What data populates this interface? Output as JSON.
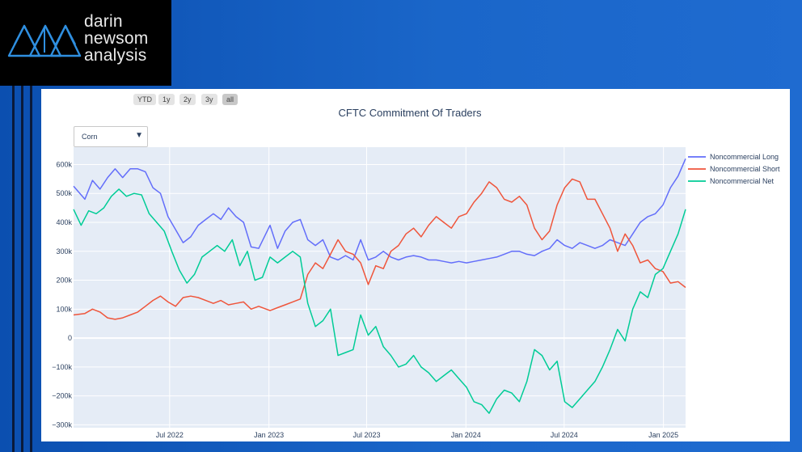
{
  "logo": {
    "word1": "darin",
    "word2": "newsom",
    "word3": "analysis",
    "colors": {
      "mountain": "#2f8fe0",
      "text": "#e9e9e9",
      "background": "#000000"
    }
  },
  "range_selector": {
    "buttons": [
      "YTD",
      "1y",
      "2y",
      "3y",
      "all"
    ],
    "active": "all"
  },
  "dropdown": {
    "selected": "Corn",
    "icon": "triangle-down-icon"
  },
  "chart_data": {
    "type": "line",
    "title": "CFTC Commitment Of Traders",
    "xlabel": "",
    "ylabel": "",
    "grid": true,
    "legend_position": "right",
    "xlim": [
      "2022-01-04",
      "2025-02-11"
    ],
    "ylim": [
      -310000,
      660000
    ],
    "xticks": [
      {
        "date": "2022-07-01",
        "label": "Jul 2022"
      },
      {
        "date": "2023-01-01",
        "label": "Jan 2023"
      },
      {
        "date": "2023-07-01",
        "label": "Jul 2023"
      },
      {
        "date": "2024-01-01",
        "label": "Jan 2024"
      },
      {
        "date": "2024-07-01",
        "label": "Jul 2024"
      },
      {
        "date": "2025-01-01",
        "label": "Jan 2025"
      }
    ],
    "yticks": [
      {
        "value": 600000,
        "label": "600k"
      },
      {
        "value": 500000,
        "label": "500k"
      },
      {
        "value": 400000,
        "label": "400k"
      },
      {
        "value": 300000,
        "label": "300k"
      },
      {
        "value": 200000,
        "label": "200k"
      },
      {
        "value": 100000,
        "label": "100k"
      },
      {
        "value": 0,
        "label": "0"
      },
      {
        "value": -100000,
        "label": "−100k"
      },
      {
        "value": -200000,
        "label": "−200k"
      },
      {
        "value": -300000,
        "label": "−300k"
      }
    ],
    "series": [
      {
        "name": "Noncommercial Long",
        "color": "#636efa",
        "points": [
          [
            "2022-01-04",
            525000
          ],
          [
            "2022-01-25",
            480000
          ],
          [
            "2022-02-08",
            545000
          ],
          [
            "2022-02-22",
            515000
          ],
          [
            "2022-03-08",
            555000
          ],
          [
            "2022-03-22",
            585000
          ],
          [
            "2022-04-05",
            555000
          ],
          [
            "2022-04-19",
            585000
          ],
          [
            "2022-05-03",
            585000
          ],
          [
            "2022-05-17",
            575000
          ],
          [
            "2022-05-31",
            520000
          ],
          [
            "2022-06-14",
            500000
          ],
          [
            "2022-06-28",
            420000
          ],
          [
            "2022-07-12",
            375000
          ],
          [
            "2022-07-26",
            330000
          ],
          [
            "2022-08-09",
            350000
          ],
          [
            "2022-08-23",
            390000
          ],
          [
            "2022-09-06",
            410000
          ],
          [
            "2022-09-20",
            430000
          ],
          [
            "2022-10-04",
            410000
          ],
          [
            "2022-10-18",
            450000
          ],
          [
            "2022-11-01",
            420000
          ],
          [
            "2022-11-15",
            400000
          ],
          [
            "2022-11-29",
            315000
          ],
          [
            "2022-12-13",
            310000
          ],
          [
            "2023-01-03",
            390000
          ],
          [
            "2023-01-17",
            310000
          ],
          [
            "2023-01-31",
            370000
          ],
          [
            "2023-02-14",
            400000
          ],
          [
            "2023-02-28",
            410000
          ],
          [
            "2023-03-14",
            340000
          ],
          [
            "2023-03-28",
            320000
          ],
          [
            "2023-04-11",
            340000
          ],
          [
            "2023-04-25",
            280000
          ],
          [
            "2023-05-09",
            270000
          ],
          [
            "2023-05-23",
            285000
          ],
          [
            "2023-06-06",
            270000
          ],
          [
            "2023-06-20",
            340000
          ],
          [
            "2023-07-04",
            270000
          ],
          [
            "2023-07-18",
            280000
          ],
          [
            "2023-08-01",
            300000
          ],
          [
            "2023-08-15",
            280000
          ],
          [
            "2023-08-29",
            270000
          ],
          [
            "2023-09-12",
            280000
          ],
          [
            "2023-09-26",
            285000
          ],
          [
            "2023-10-10",
            280000
          ],
          [
            "2023-10-24",
            270000
          ],
          [
            "2023-11-07",
            270000
          ],
          [
            "2023-11-21",
            265000
          ],
          [
            "2023-12-05",
            260000
          ],
          [
            "2023-12-19",
            265000
          ],
          [
            "2024-01-02",
            260000
          ],
          [
            "2024-01-16",
            265000
          ],
          [
            "2024-01-30",
            270000
          ],
          [
            "2024-02-13",
            275000
          ],
          [
            "2024-02-27",
            280000
          ],
          [
            "2024-03-12",
            290000
          ],
          [
            "2024-03-26",
            300000
          ],
          [
            "2024-04-09",
            300000
          ],
          [
            "2024-04-23",
            290000
          ],
          [
            "2024-05-07",
            285000
          ],
          [
            "2024-05-21",
            300000
          ],
          [
            "2024-06-04",
            310000
          ],
          [
            "2024-06-18",
            340000
          ],
          [
            "2024-07-02",
            320000
          ],
          [
            "2024-07-16",
            310000
          ],
          [
            "2024-07-30",
            330000
          ],
          [
            "2024-08-13",
            320000
          ],
          [
            "2024-08-27",
            310000
          ],
          [
            "2024-09-10",
            320000
          ],
          [
            "2024-09-24",
            340000
          ],
          [
            "2024-10-08",
            330000
          ],
          [
            "2024-10-22",
            320000
          ],
          [
            "2024-11-05",
            360000
          ],
          [
            "2024-11-19",
            400000
          ],
          [
            "2024-12-03",
            420000
          ],
          [
            "2024-12-17",
            430000
          ],
          [
            "2024-12-31",
            460000
          ],
          [
            "2025-01-14",
            520000
          ],
          [
            "2025-01-28",
            560000
          ],
          [
            "2025-02-11",
            620000
          ]
        ]
      },
      {
        "name": "Noncommercial Short",
        "color": "#ef553b",
        "points": [
          [
            "2022-01-04",
            80000
          ],
          [
            "2022-01-25",
            85000
          ],
          [
            "2022-02-08",
            100000
          ],
          [
            "2022-02-22",
            90000
          ],
          [
            "2022-03-08",
            70000
          ],
          [
            "2022-03-22",
            65000
          ],
          [
            "2022-04-05",
            70000
          ],
          [
            "2022-04-19",
            80000
          ],
          [
            "2022-05-03",
            90000
          ],
          [
            "2022-05-17",
            110000
          ],
          [
            "2022-05-31",
            130000
          ],
          [
            "2022-06-14",
            145000
          ],
          [
            "2022-06-28",
            125000
          ],
          [
            "2022-07-12",
            110000
          ],
          [
            "2022-07-26",
            140000
          ],
          [
            "2022-08-09",
            145000
          ],
          [
            "2022-08-23",
            140000
          ],
          [
            "2022-09-06",
            130000
          ],
          [
            "2022-09-20",
            120000
          ],
          [
            "2022-10-04",
            130000
          ],
          [
            "2022-10-18",
            115000
          ],
          [
            "2022-11-01",
            120000
          ],
          [
            "2022-11-15",
            125000
          ],
          [
            "2022-11-29",
            100000
          ],
          [
            "2022-12-13",
            110000
          ],
          [
            "2023-01-03",
            95000
          ],
          [
            "2023-01-17",
            105000
          ],
          [
            "2023-01-31",
            115000
          ],
          [
            "2023-02-14",
            125000
          ],
          [
            "2023-02-28",
            135000
          ],
          [
            "2023-03-14",
            220000
          ],
          [
            "2023-03-28",
            260000
          ],
          [
            "2023-04-11",
            240000
          ],
          [
            "2023-04-25",
            290000
          ],
          [
            "2023-05-09",
            340000
          ],
          [
            "2023-05-23",
            300000
          ],
          [
            "2023-06-06",
            290000
          ],
          [
            "2023-06-20",
            260000
          ],
          [
            "2023-07-04",
            185000
          ],
          [
            "2023-07-18",
            250000
          ],
          [
            "2023-08-01",
            240000
          ],
          [
            "2023-08-15",
            300000
          ],
          [
            "2023-08-29",
            320000
          ],
          [
            "2023-09-12",
            360000
          ],
          [
            "2023-09-26",
            380000
          ],
          [
            "2023-10-10",
            350000
          ],
          [
            "2023-10-24",
            390000
          ],
          [
            "2023-11-07",
            420000
          ],
          [
            "2023-11-21",
            400000
          ],
          [
            "2023-12-05",
            380000
          ],
          [
            "2023-12-19",
            420000
          ],
          [
            "2024-01-02",
            430000
          ],
          [
            "2024-01-16",
            470000
          ],
          [
            "2024-01-30",
            500000
          ],
          [
            "2024-02-13",
            540000
          ],
          [
            "2024-02-27",
            520000
          ],
          [
            "2024-03-12",
            480000
          ],
          [
            "2024-03-26",
            470000
          ],
          [
            "2024-04-09",
            490000
          ],
          [
            "2024-04-23",
            460000
          ],
          [
            "2024-05-07",
            380000
          ],
          [
            "2024-05-21",
            340000
          ],
          [
            "2024-06-04",
            370000
          ],
          [
            "2024-06-18",
            460000
          ],
          [
            "2024-07-02",
            520000
          ],
          [
            "2024-07-16",
            550000
          ],
          [
            "2024-07-30",
            540000
          ],
          [
            "2024-08-13",
            480000
          ],
          [
            "2024-08-27",
            480000
          ],
          [
            "2024-09-10",
            430000
          ],
          [
            "2024-09-24",
            380000
          ],
          [
            "2024-10-08",
            300000
          ],
          [
            "2024-10-22",
            360000
          ],
          [
            "2024-11-05",
            320000
          ],
          [
            "2024-11-19",
            260000
          ],
          [
            "2024-12-03",
            270000
          ],
          [
            "2024-12-17",
            240000
          ],
          [
            "2024-12-31",
            230000
          ],
          [
            "2025-01-14",
            190000
          ],
          [
            "2025-01-28",
            195000
          ],
          [
            "2025-02-11",
            175000
          ]
        ]
      },
      {
        "name": "Noncommercial Net",
        "color": "#00cc96",
        "points": [
          [
            "2022-01-04",
            445000
          ],
          [
            "2022-01-18",
            390000
          ],
          [
            "2022-02-01",
            440000
          ],
          [
            "2022-02-15",
            430000
          ],
          [
            "2022-03-01",
            450000
          ],
          [
            "2022-03-15",
            490000
          ],
          [
            "2022-03-29",
            515000
          ],
          [
            "2022-04-12",
            490000
          ],
          [
            "2022-04-26",
            500000
          ],
          [
            "2022-05-10",
            495000
          ],
          [
            "2022-05-24",
            430000
          ],
          [
            "2022-06-07",
            400000
          ],
          [
            "2022-06-21",
            370000
          ],
          [
            "2022-07-05",
            300000
          ],
          [
            "2022-07-19",
            235000
          ],
          [
            "2022-08-02",
            190000
          ],
          [
            "2022-08-16",
            220000
          ],
          [
            "2022-08-30",
            280000
          ],
          [
            "2022-09-13",
            300000
          ],
          [
            "2022-09-27",
            320000
          ],
          [
            "2022-10-11",
            300000
          ],
          [
            "2022-10-25",
            340000
          ],
          [
            "2022-11-08",
            250000
          ],
          [
            "2022-11-22",
            300000
          ],
          [
            "2022-12-06",
            200000
          ],
          [
            "2022-12-20",
            210000
          ],
          [
            "2023-01-03",
            280000
          ],
          [
            "2023-01-17",
            260000
          ],
          [
            "2023-01-31",
            280000
          ],
          [
            "2023-02-14",
            300000
          ],
          [
            "2023-02-28",
            280000
          ],
          [
            "2023-03-14",
            120000
          ],
          [
            "2023-03-28",
            40000
          ],
          [
            "2023-04-11",
            60000
          ],
          [
            "2023-04-25",
            100000
          ],
          [
            "2023-05-09",
            -60000
          ],
          [
            "2023-05-23",
            -50000
          ],
          [
            "2023-06-06",
            -40000
          ],
          [
            "2023-06-20",
            80000
          ],
          [
            "2023-07-04",
            10000
          ],
          [
            "2023-07-18",
            40000
          ],
          [
            "2023-08-01",
            -30000
          ],
          [
            "2023-08-15",
            -60000
          ],
          [
            "2023-08-29",
            -100000
          ],
          [
            "2023-09-12",
            -90000
          ],
          [
            "2023-09-26",
            -60000
          ],
          [
            "2023-10-10",
            -100000
          ],
          [
            "2023-10-24",
            -120000
          ],
          [
            "2023-11-07",
            -150000
          ],
          [
            "2023-11-21",
            -130000
          ],
          [
            "2023-12-05",
            -110000
          ],
          [
            "2023-12-19",
            -140000
          ],
          [
            "2024-01-02",
            -170000
          ],
          [
            "2024-01-16",
            -220000
          ],
          [
            "2024-01-30",
            -230000
          ],
          [
            "2024-02-13",
            -260000
          ],
          [
            "2024-02-27",
            -210000
          ],
          [
            "2024-03-12",
            -180000
          ],
          [
            "2024-03-26",
            -190000
          ],
          [
            "2024-04-09",
            -220000
          ],
          [
            "2024-04-23",
            -150000
          ],
          [
            "2024-05-07",
            -40000
          ],
          [
            "2024-05-21",
            -60000
          ],
          [
            "2024-06-04",
            -110000
          ],
          [
            "2024-06-18",
            -80000
          ],
          [
            "2024-07-02",
            -220000
          ],
          [
            "2024-07-16",
            -240000
          ],
          [
            "2024-07-30",
            -210000
          ],
          [
            "2024-08-13",
            -180000
          ],
          [
            "2024-08-27",
            -150000
          ],
          [
            "2024-09-10",
            -100000
          ],
          [
            "2024-09-24",
            -40000
          ],
          [
            "2024-10-08",
            30000
          ],
          [
            "2024-10-22",
            -10000
          ],
          [
            "2024-11-05",
            100000
          ],
          [
            "2024-11-19",
            160000
          ],
          [
            "2024-12-03",
            140000
          ],
          [
            "2024-12-17",
            220000
          ],
          [
            "2024-12-31",
            240000
          ],
          [
            "2025-01-14",
            300000
          ],
          [
            "2025-01-28",
            360000
          ],
          [
            "2025-02-11",
            445000
          ]
        ]
      }
    ]
  }
}
